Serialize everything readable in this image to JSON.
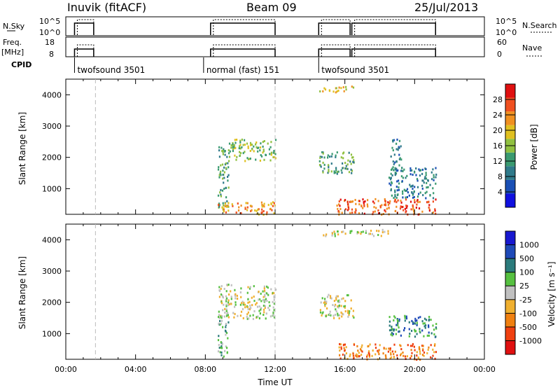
{
  "header": {
    "station": "Inuvik (fitACF)",
    "beam": "Beam 09",
    "date": "25/Jul/2013"
  },
  "strips": {
    "nsky_label": "N.Sky",
    "nsky_ticks": [
      "10^5",
      "10^0"
    ],
    "nsearch_label": "N.Search",
    "freq_label_1": "Freq.",
    "freq_label_2": "[MHz]",
    "freq_ticks": [
      "18",
      "8"
    ],
    "nave_label": "Nave",
    "nave_ticks": [
      "60",
      "0"
    ],
    "cpid_label": "CPID",
    "cpid_segments": [
      {
        "label": "twofsound 3501",
        "start_hour": 0.5
      },
      {
        "label": "normal (fast) 151",
        "start_hour": 7.9
      },
      {
        "label": "twofsound 3501",
        "start_hour": 14.5
      }
    ]
  },
  "colors": {
    "power_scale": [
      "#1010e0",
      "#1a4fb5",
      "#2f7a8a",
      "#3a9a70",
      "#90c040",
      "#e0c020",
      "#f09020",
      "#f05020",
      "#e01010"
    ],
    "velocity_scale": [
      "#1818d0",
      "#1e4ab8",
      "#2b7b7c",
      "#56c040",
      "#c0c0c0",
      "#f0b030",
      "#f08010",
      "#f04010",
      "#e01010"
    ]
  },
  "chart_data": [
    {
      "type": "heatmap",
      "name": "power",
      "xlabel": "",
      "ylabel": "Slant Range [km]",
      "xlim": [
        0,
        24
      ],
      "ylim": [
        180,
        4500
      ],
      "yticks": [
        1000,
        2000,
        3000,
        4000
      ],
      "colorbar": {
        "label": "Power [dB]",
        "ticks": [
          "4",
          "8",
          "12",
          "16",
          "20",
          "24",
          "28"
        ],
        "range": [
          0,
          32
        ]
      },
      "regions": [
        {
          "x": [
            8.7,
            9.3
          ],
          "y": [
            300,
            2400
          ],
          "value": 14
        },
        {
          "x": [
            9.3,
            12.0
          ],
          "y": [
            1900,
            2600
          ],
          "value": 16
        },
        {
          "x": [
            8.7,
            12.0
          ],
          "y": [
            200,
            600
          ],
          "value": 24
        },
        {
          "x": [
            14.5,
            16.5
          ],
          "y": [
            4100,
            4300
          ],
          "value": 20
        },
        {
          "x": [
            14.5,
            16.5
          ],
          "y": [
            1500,
            2200
          ],
          "value": 14
        },
        {
          "x": [
            15.5,
            21.2
          ],
          "y": [
            200,
            700
          ],
          "value": 26
        },
        {
          "x": [
            18.5,
            21.2
          ],
          "y": [
            700,
            1700
          ],
          "value": 10
        },
        {
          "x": [
            18.6,
            19.2
          ],
          "y": [
            1700,
            2600
          ],
          "value": 8
        }
      ]
    },
    {
      "type": "heatmap",
      "name": "velocity",
      "xlabel": "Time UT",
      "ylabel": "Slant Range [km]",
      "xlim": [
        0,
        24
      ],
      "ylim": [
        180,
        4500
      ],
      "yticks": [
        1000,
        2000,
        3000,
        4000
      ],
      "xticks": [
        "00:00",
        "04:00",
        "08:00",
        "12:00",
        "16:00",
        "20:00",
        "00:00"
      ],
      "colorbar": {
        "label": "Velocity [m s⁻¹]",
        "ticks": [
          "1000",
          "500",
          "100",
          "25",
          "-25",
          "-100",
          "-500",
          "-1000"
        ]
      },
      "regions": [
        {
          "x": [
            8.7,
            12.0
          ],
          "y": [
            1500,
            2600
          ],
          "value": 0
        },
        {
          "x": [
            8.7,
            9.3
          ],
          "y": [
            300,
            1500
          ],
          "value": 80
        },
        {
          "x": [
            14.5,
            16.5
          ],
          "y": [
            1500,
            2300
          ],
          "value": 0
        },
        {
          "x": [
            15.5,
            21.2
          ],
          "y": [
            200,
            700
          ],
          "value": -150
        },
        {
          "x": [
            18.5,
            21.2
          ],
          "y": [
            900,
            1600
          ],
          "value": 120
        },
        {
          "x": [
            14.5,
            18.5
          ],
          "y": [
            4150,
            4350
          ],
          "value": 0
        }
      ]
    }
  ]
}
